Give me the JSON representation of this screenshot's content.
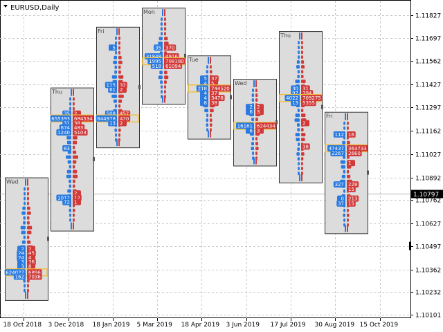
{
  "window": {
    "symbol_label": "EURUSD,Daily",
    "menu_icon": "triangle-down-icon"
  },
  "price_axis": {
    "ticks": [
      "1.11827",
      "1.11697",
      "1.11562",
      "1.11427",
      "1.11297",
      "1.11162",
      "1.11027",
      "1.10892",
      "1.10762",
      "1.10627",
      "1.10497",
      "1.10362",
      "1.10232",
      "1.10101"
    ],
    "current_price": "1.10797"
  },
  "time_axis": {
    "ticks": [
      "18 Oct 2018",
      "3 Dec 2018",
      "18 Jan 2019",
      "5 Mar 2019",
      "18 Apr 2019",
      "3 Jun 2019",
      "17 Jul 2019",
      "30 Aug 2019",
      "15 Oct 2019"
    ]
  },
  "colors": {
    "buy": "#2a7ae0",
    "sell": "#d23a3a",
    "box_fill": "#dcdcdc",
    "box_border": "#333333",
    "highlight": "#f0c040",
    "grid": "#c8c8c8",
    "current_line": "#b0b0b0"
  },
  "chart_data": {
    "type": "volume-profile",
    "symbol": "EURUSD",
    "timeframe": "Daily",
    "y_range": [
      1.10101,
      1.11827
    ],
    "profiles": [
      {
        "day": "Wed",
        "high": 1.10892,
        "low": 1.10185,
        "rows": [
          {
            "price": 1.1048,
            "buy": "2",
            "sell": "2"
          },
          {
            "price": 1.10455,
            "buy": "24",
            "sell": "45"
          },
          {
            "price": 1.1043,
            "buy": "24",
            "sell": "4"
          },
          {
            "price": 1.10405,
            "buy": "3",
            "sell": "36"
          },
          {
            "price": 1.1038,
            "buy": "3",
            "sell": "8"
          },
          {
            "price": 1.10345,
            "buy": "624027",
            "sell": "6896",
            "poc": true
          },
          {
            "price": 1.1032,
            "buy": "162",
            "sell": "7036"
          }
        ]
      },
      {
        "day": "Thu",
        "high": 1.1141,
        "low": 1.10585,
        "rows": [
          {
            "price": 1.1126,
            "buy": "35",
            "sell": "2"
          },
          {
            "price": 1.11232,
            "buy": "655393",
            "sell": "684534",
            "poc": true
          },
          {
            "price": 1.11205,
            "buy": "31",
            "sell": "38"
          },
          {
            "price": 1.1118,
            "buy": "674",
            "sell": "483"
          },
          {
            "price": 1.11152,
            "buy": "1240",
            "sell": "5103"
          },
          {
            "price": 1.1106,
            "buy": "83",
            "sell": ""
          },
          {
            "price": 1.108,
            "buy": "",
            "sell": "2"
          },
          {
            "price": 1.10775,
            "buy": "1012",
            "sell": "12"
          },
          {
            "price": 1.1075,
            "buy": "72",
            "sell": "1"
          }
        ]
      },
      {
        "day": "Fri",
        "high": 1.1176,
        "low": 1.11065,
        "rows": [
          {
            "price": 1.1164,
            "buy": "5",
            "sell": ""
          },
          {
            "price": 1.11425,
            "buy": "115",
            "sell": "32"
          },
          {
            "price": 1.11398,
            "buy": "61",
            "sell": "2"
          },
          {
            "price": 1.1126,
            "buy": "508",
            "sell": "457"
          },
          {
            "price": 1.11232,
            "buy": "844978",
            "sell": "420",
            "poc": true
          },
          {
            "price": 1.11205,
            "buy": "13",
            "sell": "2"
          }
        ]
      },
      {
        "day": "Mon",
        "high": 1.1187,
        "low": 1.11315,
        "rows": [
          {
            "price": 1.1164,
            "buy": "35",
            "sell": "370"
          },
          {
            "price": 1.1159,
            "buy": "31848",
            "sell": "4916"
          },
          {
            "price": 1.11562,
            "buy": "1995",
            "sell": "708180",
            "poc": true
          },
          {
            "price": 1.11535,
            "buy": "518",
            "sell": "61094"
          }
        ]
      },
      {
        "day": "Tue",
        "high": 1.11595,
        "low": 1.11115,
        "rows": [
          {
            "price": 1.11462,
            "buy": "5",
            "sell": "37"
          },
          {
            "price": 1.11435,
            "buy": "4",
            "sell": "5"
          },
          {
            "price": 1.11405,
            "buy": "218",
            "sell": "744520",
            "poc": true
          },
          {
            "price": 1.11378,
            "buy": "4",
            "sell": "37"
          },
          {
            "price": 1.1135,
            "buy": "4",
            "sell": "3478"
          },
          {
            "price": 1.11322,
            "buy": "8",
            "sell": "38"
          }
        ]
      },
      {
        "day": "Wed",
        "high": 1.1146,
        "low": 1.1096,
        "rows": [
          {
            "price": 1.11298,
            "buy": "2",
            "sell": "2"
          },
          {
            "price": 1.1127,
            "buy": "6",
            "sell": "3"
          },
          {
            "price": 1.1119,
            "buy": "16161",
            "sell": "624434",
            "poc": true
          },
          {
            "price": 1.11162,
            "buy": "6",
            "sell": "3"
          }
        ]
      },
      {
        "day": "Thu",
        "high": 1.11735,
        "low": 1.10862,
        "rows": [
          {
            "price": 1.11405,
            "buy": "30",
            "sell": "31"
          },
          {
            "price": 1.11378,
            "buy": "97",
            "sell": "394"
          },
          {
            "price": 1.1135,
            "buy": "4022",
            "sell": "709275",
            "poc": true
          },
          {
            "price": 1.11322,
            "buy": "13",
            "sell": "5355"
          },
          {
            "price": 1.11205,
            "buy": "",
            "sell": "2"
          },
          {
            "price": 1.1107,
            "buy": "",
            "sell": "38"
          }
        ]
      },
      {
        "day": "Fri",
        "high": 1.1127,
        "low": 1.1057,
        "rows": [
          {
            "price": 1.1114,
            "buy": "112",
            "sell": "16"
          },
          {
            "price": 1.1106,
            "buy": "47437",
            "sell": "363733",
            "poc": true
          },
          {
            "price": 1.11032,
            "buy": "2267",
            "sell": "2660"
          },
          {
            "price": 1.10975,
            "buy": "",
            "sell": "1"
          },
          {
            "price": 1.10852,
            "buy": "327",
            "sell": "228"
          },
          {
            "price": 1.10825,
            "buy": "",
            "sell": "15"
          },
          {
            "price": 1.1077,
            "buy": "0",
            "sell": "213"
          },
          {
            "price": 1.10742,
            "buy": "37",
            "sell": "15"
          }
        ]
      }
    ]
  }
}
